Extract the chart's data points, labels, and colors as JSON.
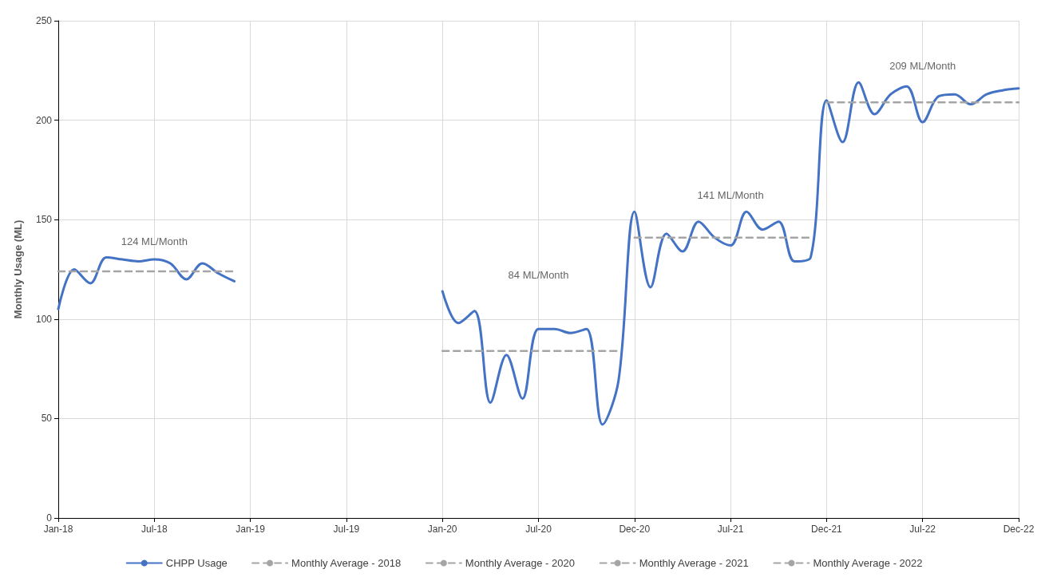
{
  "chart_data": {
    "type": "line",
    "ylabel": "Monthly Usage (ML)",
    "categories": [
      "Jan-18",
      null,
      null,
      null,
      null,
      null,
      "Jul-18",
      null,
      null,
      null,
      null,
      null,
      "Jan-19",
      null,
      null,
      null,
      null,
      null,
      "Jul-19",
      null,
      null,
      null,
      null,
      null,
      "Jan-20",
      null,
      null,
      null,
      null,
      null,
      "Jul-20",
      null,
      null,
      null,
      null,
      null,
      "Dec-20",
      null,
      null,
      null,
      null,
      null,
      "Jul-21",
      null,
      null,
      null,
      null,
      null,
      "Dec-21",
      null,
      null,
      null,
      null,
      null,
      "Jul-22",
      null,
      null,
      null,
      null,
      null,
      "Dec-22"
    ],
    "series": [
      {
        "name": "CHPP Usage",
        "color": "#4472c4",
        "line_style": "solid",
        "values": [
          105,
          125,
          118,
          131,
          130,
          129,
          130,
          128,
          120,
          128,
          123,
          119,
          null,
          null,
          null,
          null,
          null,
          null,
          null,
          null,
          null,
          null,
          null,
          null,
          114,
          98,
          104,
          58,
          82,
          60,
          95,
          95,
          93,
          95,
          47,
          69,
          154,
          116,
          143,
          134,
          149,
          141,
          137,
          154,
          145,
          149,
          129,
          131,
          210,
          189,
          219,
          203,
          213,
          217,
          199,
          212,
          213,
          208,
          213,
          215,
          216
        ]
      },
      {
        "name": "Monthly Average - 2018",
        "color": "#a5a5a5",
        "line_style": "dashed",
        "values": [
          124,
          124,
          124,
          124,
          124,
          124,
          124,
          124,
          124,
          124,
          124,
          124,
          null,
          null,
          null,
          null,
          null,
          null,
          null,
          null,
          null,
          null,
          null,
          null,
          null,
          null,
          null,
          null,
          null,
          null,
          null,
          null,
          null,
          null,
          null,
          null,
          null,
          null,
          null,
          null,
          null,
          null,
          null,
          null,
          null,
          null,
          null,
          null,
          null,
          null,
          null,
          null,
          null,
          null,
          null,
          null,
          null,
          null,
          null,
          null,
          null
        ]
      },
      {
        "name": "Monthly Average - 2020",
        "color": "#a5a5a5",
        "line_style": "dashed",
        "values": [
          null,
          null,
          null,
          null,
          null,
          null,
          null,
          null,
          null,
          null,
          null,
          null,
          null,
          null,
          null,
          null,
          null,
          null,
          null,
          null,
          null,
          null,
          null,
          null,
          84,
          84,
          84,
          84,
          84,
          84,
          84,
          84,
          84,
          84,
          84,
          84,
          null,
          null,
          null,
          null,
          null,
          null,
          null,
          null,
          null,
          null,
          null,
          null,
          null,
          null,
          null,
          null,
          null,
          null,
          null,
          null,
          null,
          null,
          null,
          null,
          null
        ]
      },
      {
        "name": "Monthly Average - 2021",
        "color": "#a5a5a5",
        "line_style": "dashed",
        "values": [
          null,
          null,
          null,
          null,
          null,
          null,
          null,
          null,
          null,
          null,
          null,
          null,
          null,
          null,
          null,
          null,
          null,
          null,
          null,
          null,
          null,
          null,
          null,
          null,
          null,
          null,
          null,
          null,
          null,
          null,
          null,
          null,
          null,
          null,
          null,
          null,
          141,
          141,
          141,
          141,
          141,
          141,
          141,
          141,
          141,
          141,
          141,
          141,
          null,
          null,
          null,
          null,
          null,
          null,
          null,
          null,
          null,
          null,
          null,
          null,
          null
        ]
      },
      {
        "name": "Monthly Average - 2022",
        "color": "#a5a5a5",
        "line_style": "dashed",
        "values": [
          null,
          null,
          null,
          null,
          null,
          null,
          null,
          null,
          null,
          null,
          null,
          null,
          null,
          null,
          null,
          null,
          null,
          null,
          null,
          null,
          null,
          null,
          null,
          null,
          null,
          null,
          null,
          null,
          null,
          null,
          null,
          null,
          null,
          null,
          null,
          null,
          null,
          null,
          null,
          null,
          null,
          null,
          null,
          null,
          null,
          null,
          null,
          null,
          209,
          209,
          209,
          209,
          209,
          209,
          209,
          209,
          209,
          209,
          209,
          209,
          209
        ]
      }
    ],
    "annotations": [
      "124 ML/Month",
      "84 ML/Month",
      "141 ML/Month",
      "209 ML/Month"
    ],
    "ylim": [
      0,
      250
    ],
    "yticks": [
      0,
      50,
      100,
      150,
      200,
      250
    ],
    "grid": true,
    "legend": "bottom",
    "marker": "none"
  }
}
